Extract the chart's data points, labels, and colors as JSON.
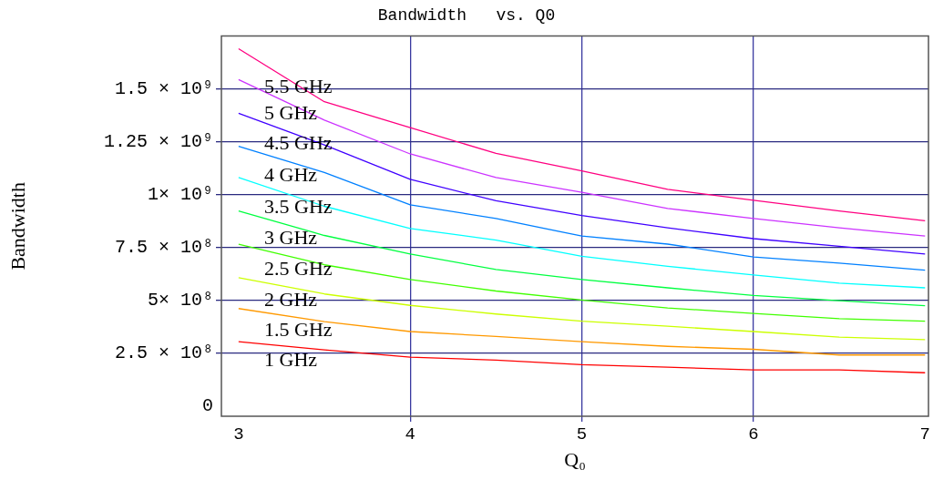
{
  "chart_data": {
    "type": "line",
    "title": "Bandwidth   vs. Q0",
    "xlabel": "Q₀",
    "ylabel": "Bandwidth",
    "x": [
      3,
      3.5,
      4,
      4.5,
      5,
      5.5,
      6,
      6.5,
      7
    ],
    "xlim": [
      2.9,
      7.02
    ],
    "xticks": [
      3,
      4,
      5,
      6,
      7
    ],
    "ylim": [
      -50000000,
      1750000000
    ],
    "yticks": [
      0,
      {
        "value": 250000000,
        "label": "2.5 × 10⁸"
      },
      {
        "value": 500000000,
        "label": "5× 10⁸"
      },
      {
        "value": 750000000,
        "label": "7.5 × 10⁸"
      },
      {
        "value": 1000000000,
        "label": "1× 10⁹"
      },
      {
        "value": 1250000000,
        "label": "1.25 × 10⁹"
      },
      {
        "value": 1500000000,
        "label": "1.5 × 10⁹"
      }
    ],
    "grid": true,
    "legend": false,
    "marker": "none",
    "line_style": "solid",
    "series": [
      {
        "name": "5.5 GHz",
        "color": "#ff0080",
        "values": [
          1690000000,
          1439000000,
          1316000000,
          1195000000,
          1112000000,
          1024000000,
          973000000,
          922000000,
          876000000
        ]
      },
      {
        "name": "5 GHz",
        "color": "#cc33ff",
        "values": [
          1544000000,
          1352000000,
          1192000000,
          1080000000,
          1010000000,
          934000000,
          886000000,
          842000000,
          803000000
        ]
      },
      {
        "name": "4.5 GHz",
        "color": "#4000ff",
        "values": [
          1384000000,
          1235000000,
          1072000000,
          970000000,
          900000000,
          842000000,
          791000000,
          755000000,
          718000000
        ]
      },
      {
        "name": "4 GHz",
        "color": "#0080ff",
        "values": [
          1228000000,
          1104000000,
          951000000,
          886000000,
          803000000,
          765000000,
          704000000,
          675000000,
          642000000
        ]
      },
      {
        "name": "3.5 GHz",
        "color": "#00ffff",
        "values": [
          1080000000,
          944000000,
          839000000,
          784000000,
          707000000,
          660000000,
          619000000,
          580000000,
          558000000
        ]
      },
      {
        "name": "3 GHz",
        "color": "#00ff40",
        "values": [
          922000000,
          806000000,
          718000000,
          645000000,
          597000000,
          558000000,
          522000000,
          497000000,
          473000000
        ]
      },
      {
        "name": "2.5 GHz",
        "color": "#40ff00",
        "values": [
          765000000,
          667000000,
          597000000,
          543000000,
          500000000,
          463000000,
          437000000,
          412000000,
          400000000
        ]
      },
      {
        "name": "2 GHz",
        "color": "#ccff00",
        "values": [
          606000000,
          529000000,
          475000000,
          434000000,
          400000000,
          376000000,
          351000000,
          325000000,
          313000000
        ]
      },
      {
        "name": "1.5 GHz",
        "color": "#ff9900",
        "values": [
          460000000,
          398000000,
          351000000,
          328000000,
          303000000,
          281000000,
          267000000,
          240000000,
          240000000
        ]
      },
      {
        "name": "1 GHz",
        "color": "#ff0000",
        "values": [
          303000000,
          264000000,
          230000000,
          216000000,
          194000000,
          182000000,
          169000000,
          169000000,
          156000000
        ]
      }
    ]
  }
}
